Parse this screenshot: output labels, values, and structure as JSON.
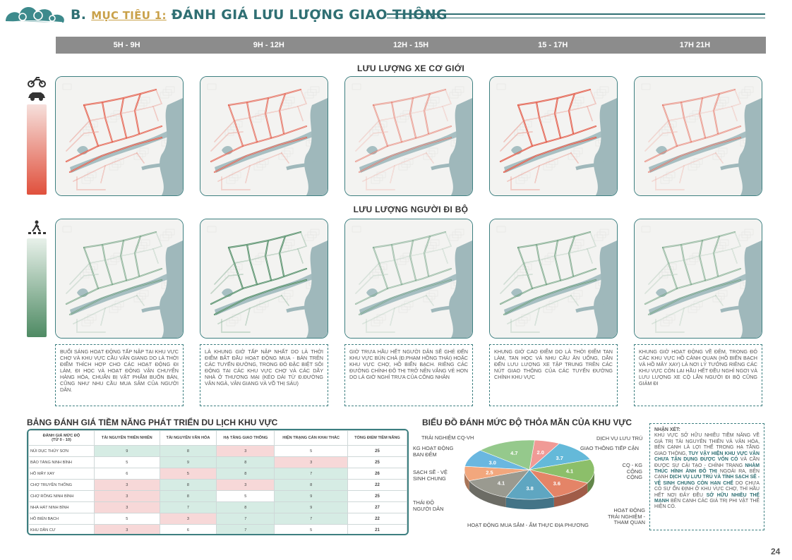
{
  "header": {
    "prefix": "B.",
    "subtitle": "MỤC TIÊU 1:",
    "title": "ĐÁNH GIÁ LƯU LƯỢNG GIAO THÔNG"
  },
  "time_slots": [
    "5H - 9H",
    "9H - 12H",
    "12H - 15H",
    "15 - 17H",
    "17H 21H"
  ],
  "vehicle_section": {
    "title": "LƯU LƯỢNG XE CƠ GIỚI"
  },
  "pedestrian_section": {
    "title": "LƯU LƯỢNG NGƯỜI ĐI BỘ"
  },
  "descriptions": [
    "Buổi sáng hoạt động tấp nập tại khu vực chợ và khu vực cầu Vân Giang do là thời điểm thích hợp cho các hoạt động đi làm, đi học và hoạt động vận chuyển hàng hóa, chuẩn bị vật phẩm buôn bán, cũng như nhu cầu mua sắm của người dân.",
    "Là khung giờ tấp nập nhất do là thời điểm bắt đầu hoạt động mua - bán trên các tuyến đường, trong đó đặc biệt sôi động tại các khu vực chợ và các dãy nhà ở thương mại (kéo dài từ đ.Đường Vân Ngà, Vân Giang và Võ Thị Sáu)",
    "Giờ trưa hầu hết người dân sẽ ghé đến khu vực bún chả (đ.Phạm Hồng Thái) hoặc khu vực chợ, Hồ Biển Bạch. Riêng các đường chính đô thị trở nên vắng vẻ hơn do là giờ nghỉ trưa của công nhân",
    "Khung giờ cao điểm do là thời điểm tan làm, tan học và nhu cầu ăn uống, dẫn đến lưu lượng xe tập trung trên các nút giao thông của các tuyến đường chính khu vực",
    "Khung giờ hoạt động về đêm, trong đó các khu vực hồ cảnh quan (Hồ Biển Bạch và Hồ Mây Xay) là nơi lý tưởng riêng các khu vực còn lại hầu hết đều nghỉ ngơi và lưu lượng xe cộ lẫn người đi bộ cũng giảm đi"
  ],
  "table": {
    "title": "BẢNG ĐÁNH GIÁ TIỀM NĂNG PHÁT TRIỂN DU LỊCH KHU VỰC",
    "header_first": "ĐÁNH GIÁ MỨC ĐỘ",
    "header_first_sub": "(TỪ 0 - 10)",
    "columns": [
      "TÀI NGUYÊN THIÊN NHIÊN",
      "TÀI NGUYÊN VĂN HÓA",
      "HẠ TẦNG GIAO THÔNG",
      "HIỆN TRẠNG CẢN KHAI THÁC",
      "TỔNG ĐIỂM TIỀM NĂNG"
    ],
    "rows": [
      {
        "name": "Núi Dục Thúy Sơn",
        "v": [
          "9",
          "8",
          "3",
          "5",
          "25"
        ]
      },
      {
        "name": "Bảo tàng Ninh Bình",
        "v": [
          "5",
          "9",
          "8",
          "3",
          "25"
        ]
      },
      {
        "name": "Hồ Mây Xay",
        "v": [
          "6",
          "5",
          "8",
          "7",
          "26"
        ]
      },
      {
        "name": "Chợ Truyền thống",
        "v": [
          "3",
          "8",
          "3",
          "8",
          "22"
        ]
      },
      {
        "name": "Chợ Rồng Ninh Bình",
        "v": [
          "3",
          "8",
          "5",
          "9",
          "25"
        ]
      },
      {
        "name": "Nhà hát Ninh Bình",
        "v": [
          "3",
          "7",
          "8",
          "9",
          "27"
        ]
      },
      {
        "name": "Hồ Biển Bạch",
        "v": [
          "5",
          "3",
          "7",
          "7",
          "22"
        ]
      },
      {
        "name": "Khu dân cư",
        "v": [
          "3",
          "6",
          "7",
          "5",
          "21"
        ]
      }
    ]
  },
  "chart_data": {
    "type": "pie",
    "title": "BIỂU ĐỒ ĐÁNH MỨC ĐỘ THỎA MÃN CỦA KHU VỰC",
    "categories": [
      "Dịch vụ lưu trú",
      "Giao thông tiếp cận",
      "CQ - KG công cộng",
      "Hoạt động trải nghiệm - tham quan",
      "Hoạt động mua sắm - ẩm thực địa phương",
      "Thái độ người dân",
      "Sạch sẽ - vệ sinh chung",
      "KG hoạt động ban đêm",
      "Trải nghiệm CQ-VH"
    ],
    "values": [
      2.0,
      3.7,
      4.1,
      3.6,
      3.8,
      4.1,
      2.5,
      3.0,
      4.7
    ],
    "value_labels": [
      "2.0",
      "3.7",
      "4.1",
      "3.6",
      "3.8",
      "4.1",
      "2.5",
      "3.0",
      "4.7"
    ],
    "colors": [
      "#f09a96",
      "#64b9d9",
      "#8cbf6a",
      "#e48467",
      "#5fa6c1",
      "#9a9a90",
      "#f2a77d",
      "#6ab7e0",
      "#95c98c"
    ]
  },
  "note": {
    "heading": "NHẬN XÉT:",
    "t1": "Khu vực sở hữu nhiều tiềm năng về giá trị tài nguyên thiên và văn hóa, bên cạnh là lợi thế trong hạ tầng giao thông,",
    "b1": "tuy vậy hiện khu vực vẫn chưa tận dụng được vốn có",
    "t2": "và cần được sự cải tạo - chỉnh trang",
    "b2": "nhằm thúc hình ảnh đô thị",
    "t3": "ngoài ra, bên cạnh",
    "b3": "dịch vụ lưu trú và tính sạch sẽ - vệ sinh chung còn hạn chế",
    "t4": "do chưa có sự ổn định ở khu vực chợ, thì hầu hết nơi đây đều",
    "b4": "sở hữu nhiều thế mạnh",
    "t5": "bên cạnh các giá trị phi vật thể hiện có."
  },
  "page_number": "24",
  "colors": {
    "accent": "#2f6f73",
    "gold": "#c9a14a",
    "vehicle": "#e0503c",
    "pedestrian": "#3f7f55"
  }
}
